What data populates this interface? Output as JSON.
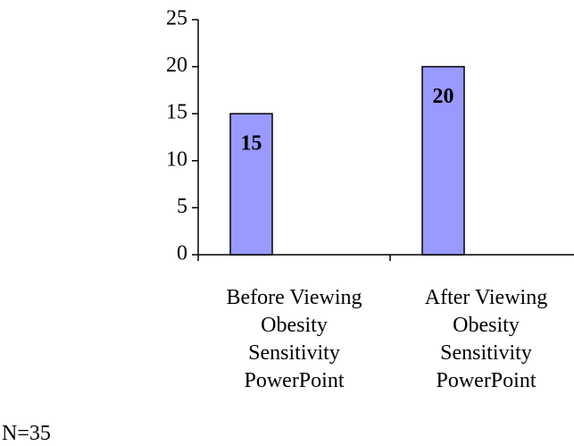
{
  "chart_data": {
    "type": "bar",
    "categories": [
      "Before Viewing Obesity Sensitivity PowerPoint",
      "After Viewing Obesity Sensitivity PowerPoint"
    ],
    "values": [
      15,
      20
    ],
    "color": "#9999ff",
    "ylim": [
      0,
      25
    ],
    "yticks": [
      0,
      5,
      10,
      15,
      20,
      25
    ],
    "annotation": "N=35"
  }
}
